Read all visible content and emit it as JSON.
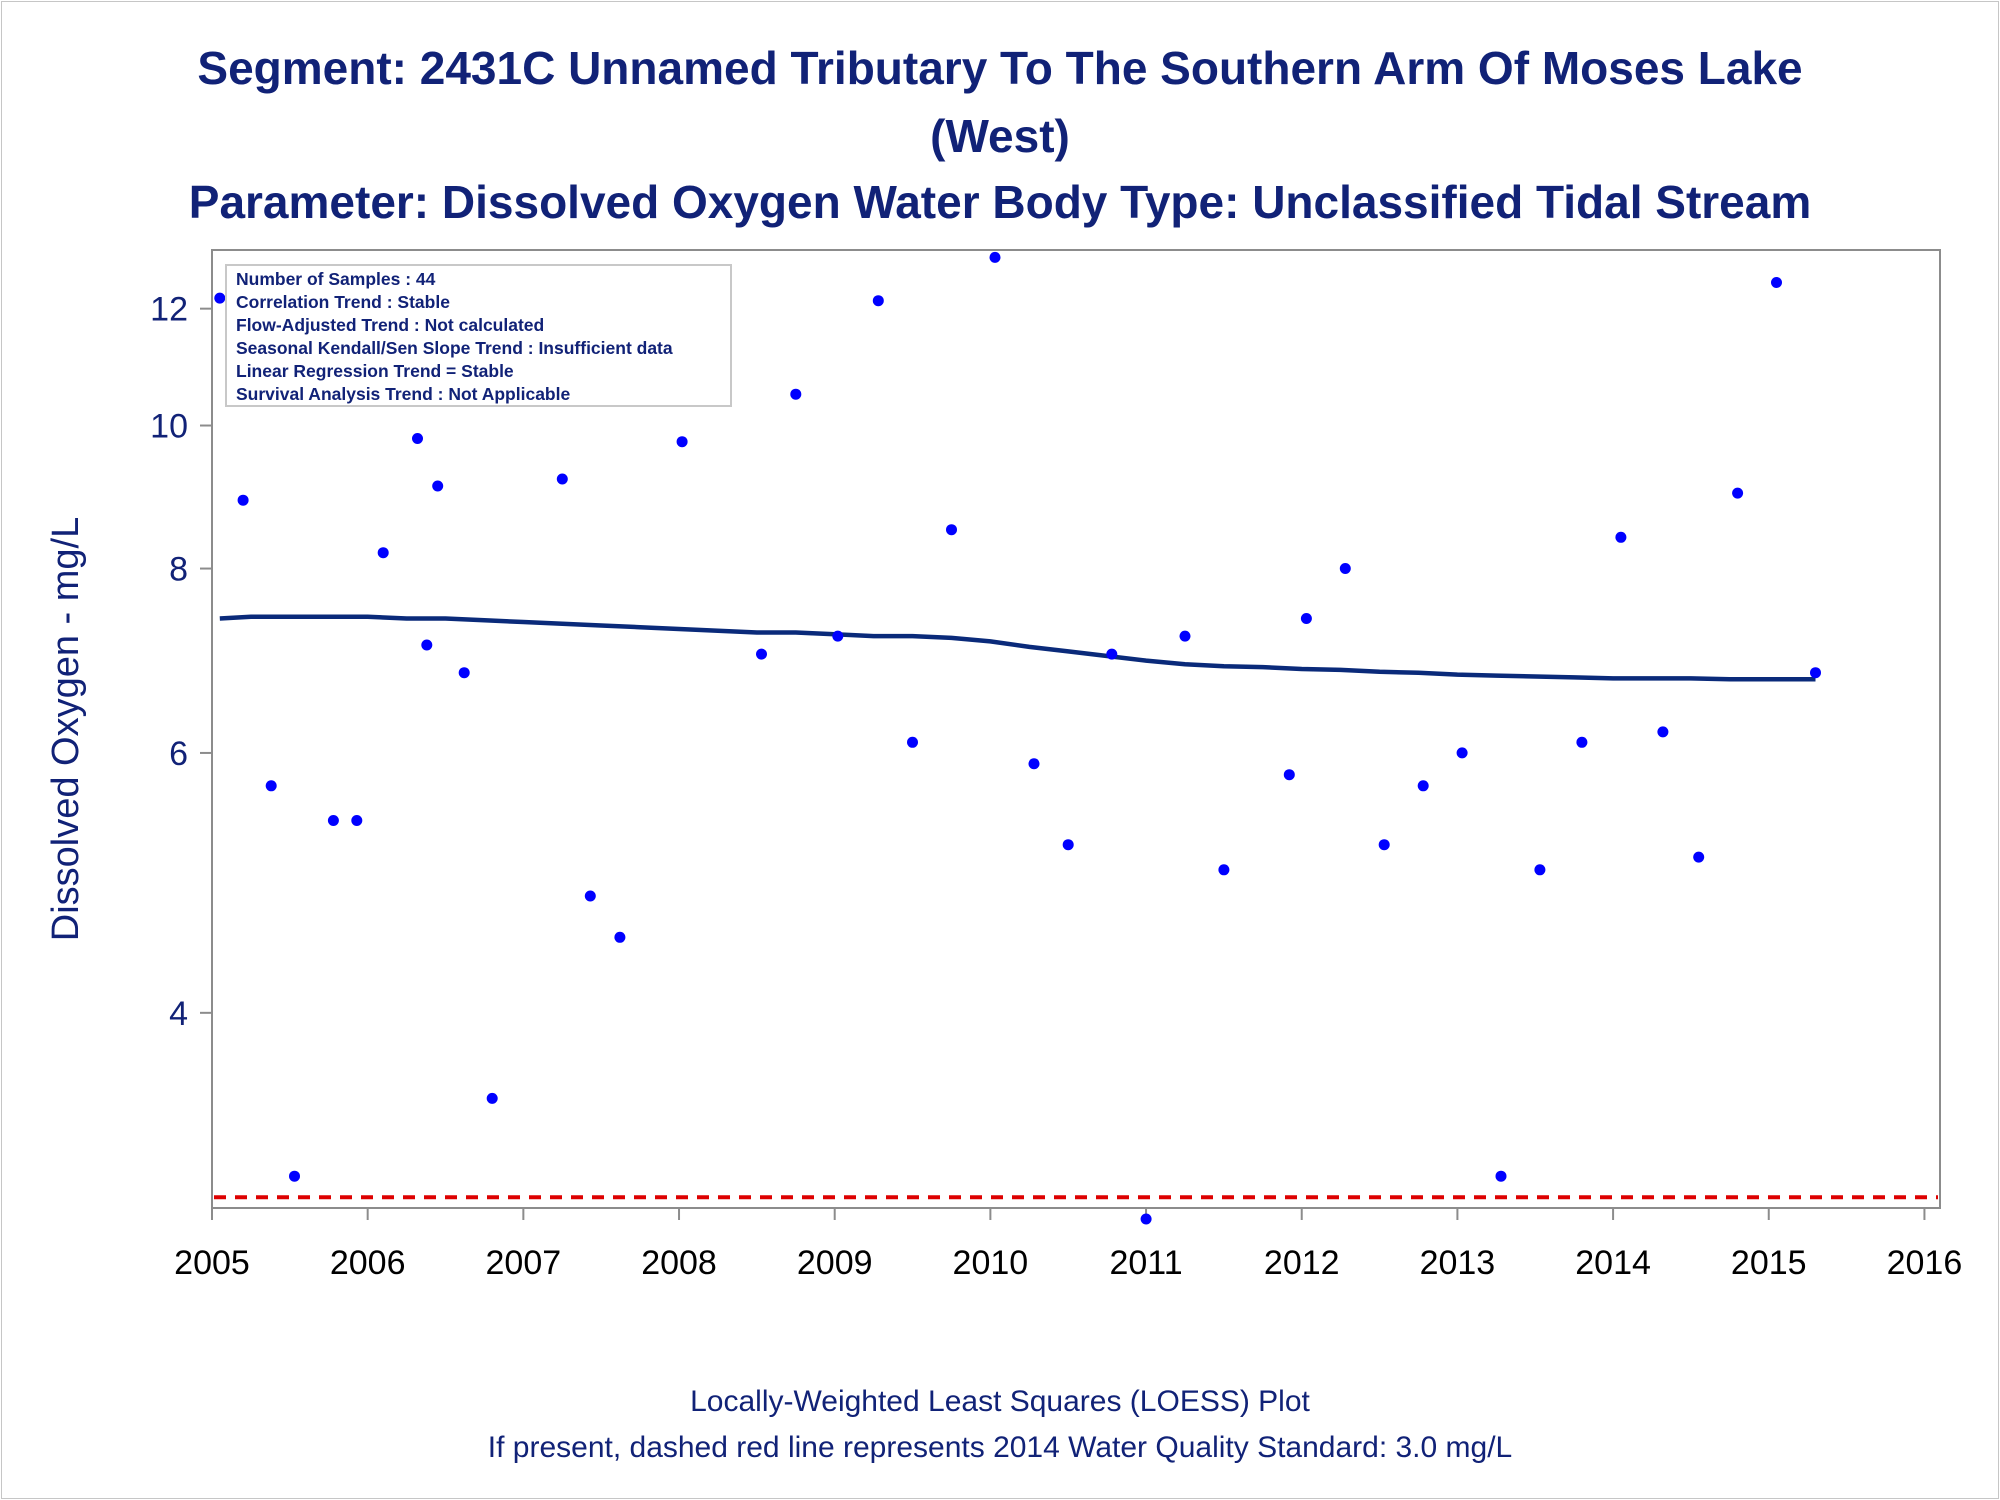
{
  "titles": {
    "line1": "Segment: 2431C  Unnamed Tributary To The Southern Arm Of Moses Lake",
    "line2": "(West)",
    "line3": "Parameter: Dissolved Oxygen   Water Body Type: Unclassified Tidal Stream"
  },
  "info_box": [
    "Number of Samples : 44",
    "Correlation Trend : Stable",
    "Flow-Adjusted Trend : Not calculated",
    "Seasonal Kendall/Sen Slope Trend : Insufficient data",
    "Linear Regression Trend = Stable",
    "Survival Analysis Trend : Not Applicable"
  ],
  "footer": {
    "line1": "Locally-Weighted Least Squares (LOESS) Plot",
    "line2": "If present, dashed red line represents 2014 Water Quality Standard: 3.0 mg/L"
  },
  "colors": {
    "text": "#112277",
    "points": "#0000ff",
    "loess": "#0a2a7a",
    "standard_line": "#dd0000",
    "axis": "#8c8c8c"
  },
  "chart_data": {
    "type": "scatter",
    "ylabel": "Dissolved Oxygen - mg/L",
    "xlabel": "",
    "y_scale": "log",
    "xlim": [
      2005,
      2016.1
    ],
    "ylim": [
      2.95,
      13.15
    ],
    "x_ticks": [
      2005,
      2006,
      2007,
      2008,
      2009,
      2010,
      2011,
      2012,
      2013,
      2014,
      2015,
      2016
    ],
    "y_ticks": [
      4,
      6,
      8,
      10,
      12
    ],
    "grid": false,
    "legend": "none",
    "standard_line": {
      "value": 3.0,
      "style": "dashed"
    },
    "series": [
      {
        "type": "scatter",
        "points": [
          [
            2005.05,
            12.2
          ],
          [
            2005.2,
            8.9
          ],
          [
            2005.38,
            5.7
          ],
          [
            2005.53,
            3.1
          ],
          [
            2005.78,
            5.4
          ],
          [
            2005.93,
            5.4
          ],
          [
            2006.1,
            8.2
          ],
          [
            2006.32,
            9.8
          ],
          [
            2006.38,
            7.1
          ],
          [
            2006.45,
            9.1
          ],
          [
            2006.62,
            6.8
          ],
          [
            2006.8,
            3.5
          ],
          [
            2007.25,
            9.2
          ],
          [
            2007.43,
            4.8
          ],
          [
            2007.62,
            4.5
          ],
          [
            2008.02,
            9.75
          ],
          [
            2008.53,
            7.0
          ],
          [
            2008.75,
            10.5
          ],
          [
            2009.02,
            7.2
          ],
          [
            2009.28,
            12.15
          ],
          [
            2009.5,
            6.1
          ],
          [
            2009.75,
            8.5
          ],
          [
            2010.03,
            13.0
          ],
          [
            2010.28,
            5.9
          ],
          [
            2010.5,
            5.2
          ],
          [
            2010.78,
            7.0
          ],
          [
            2011.0,
            2.9
          ],
          [
            2011.25,
            7.2
          ],
          [
            2011.5,
            5.0
          ],
          [
            2011.92,
            5.8
          ],
          [
            2012.03,
            7.4
          ],
          [
            2012.28,
            8.0
          ],
          [
            2012.53,
            5.2
          ],
          [
            2012.78,
            5.7
          ],
          [
            2013.03,
            6.0
          ],
          [
            2013.28,
            3.1
          ],
          [
            2013.53,
            5.0
          ],
          [
            2013.8,
            6.1
          ],
          [
            2014.05,
            8.4
          ],
          [
            2014.32,
            6.2
          ],
          [
            2014.55,
            5.1
          ],
          [
            2014.8,
            9.0
          ],
          [
            2015.05,
            12.5
          ],
          [
            2015.3,
            6.8
          ]
        ]
      },
      {
        "type": "line",
        "points": [
          [
            2005.05,
            7.4
          ],
          [
            2005.25,
            7.42
          ],
          [
            2005.5,
            7.42
          ],
          [
            2005.75,
            7.42
          ],
          [
            2006.0,
            7.42
          ],
          [
            2006.25,
            7.4
          ],
          [
            2006.5,
            7.4
          ],
          [
            2006.75,
            7.38
          ],
          [
            2007.0,
            7.36
          ],
          [
            2007.25,
            7.34
          ],
          [
            2007.5,
            7.32
          ],
          [
            2007.75,
            7.3
          ],
          [
            2008.0,
            7.28
          ],
          [
            2008.25,
            7.26
          ],
          [
            2008.5,
            7.24
          ],
          [
            2008.75,
            7.24
          ],
          [
            2009.0,
            7.22
          ],
          [
            2009.25,
            7.2
          ],
          [
            2009.5,
            7.2
          ],
          [
            2009.75,
            7.18
          ],
          [
            2010.0,
            7.14
          ],
          [
            2010.25,
            7.08
          ],
          [
            2010.5,
            7.03
          ],
          [
            2010.75,
            6.98
          ],
          [
            2011.0,
            6.93
          ],
          [
            2011.25,
            6.89
          ],
          [
            2011.5,
            6.87
          ],
          [
            2011.75,
            6.86
          ],
          [
            2012.0,
            6.84
          ],
          [
            2012.25,
            6.83
          ],
          [
            2012.5,
            6.81
          ],
          [
            2012.75,
            6.8
          ],
          [
            2013.0,
            6.78
          ],
          [
            2013.25,
            6.77
          ],
          [
            2013.5,
            6.76
          ],
          [
            2013.75,
            6.75
          ],
          [
            2014.0,
            6.74
          ],
          [
            2014.25,
            6.74
          ],
          [
            2014.5,
            6.74
          ],
          [
            2014.75,
            6.73
          ],
          [
            2015.0,
            6.73
          ],
          [
            2015.3,
            6.73
          ]
        ]
      }
    ]
  }
}
